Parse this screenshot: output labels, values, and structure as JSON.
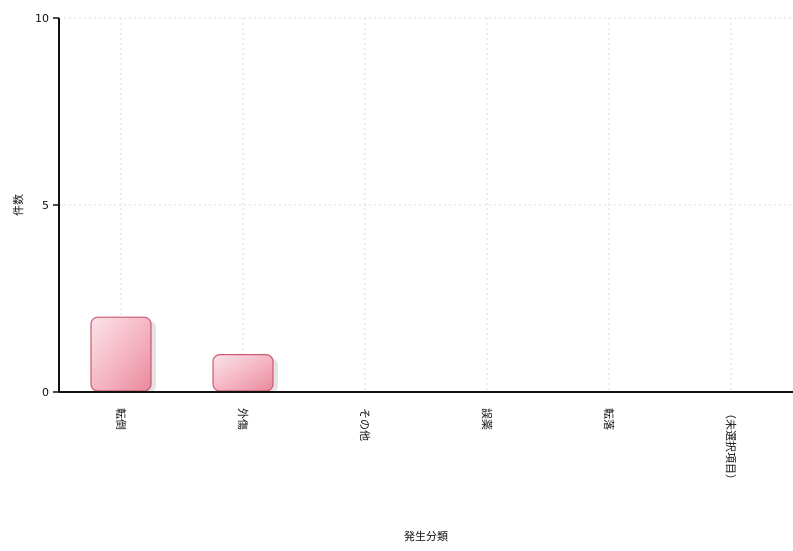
{
  "chart_data": {
    "type": "bar",
    "categories": [
      "転倒",
      "外傷",
      "その他",
      "誤薬",
      "転落",
      "（未選択項目）"
    ],
    "values": [
      2,
      1,
      0,
      0,
      0,
      0
    ],
    "title": "",
    "xlabel": "発生分類",
    "ylabel": "件数",
    "ylim": [
      0,
      10
    ],
    "yticks": [
      "0",
      "5",
      "10"
    ],
    "grid": true,
    "bar_color": "#f1a9b8"
  }
}
